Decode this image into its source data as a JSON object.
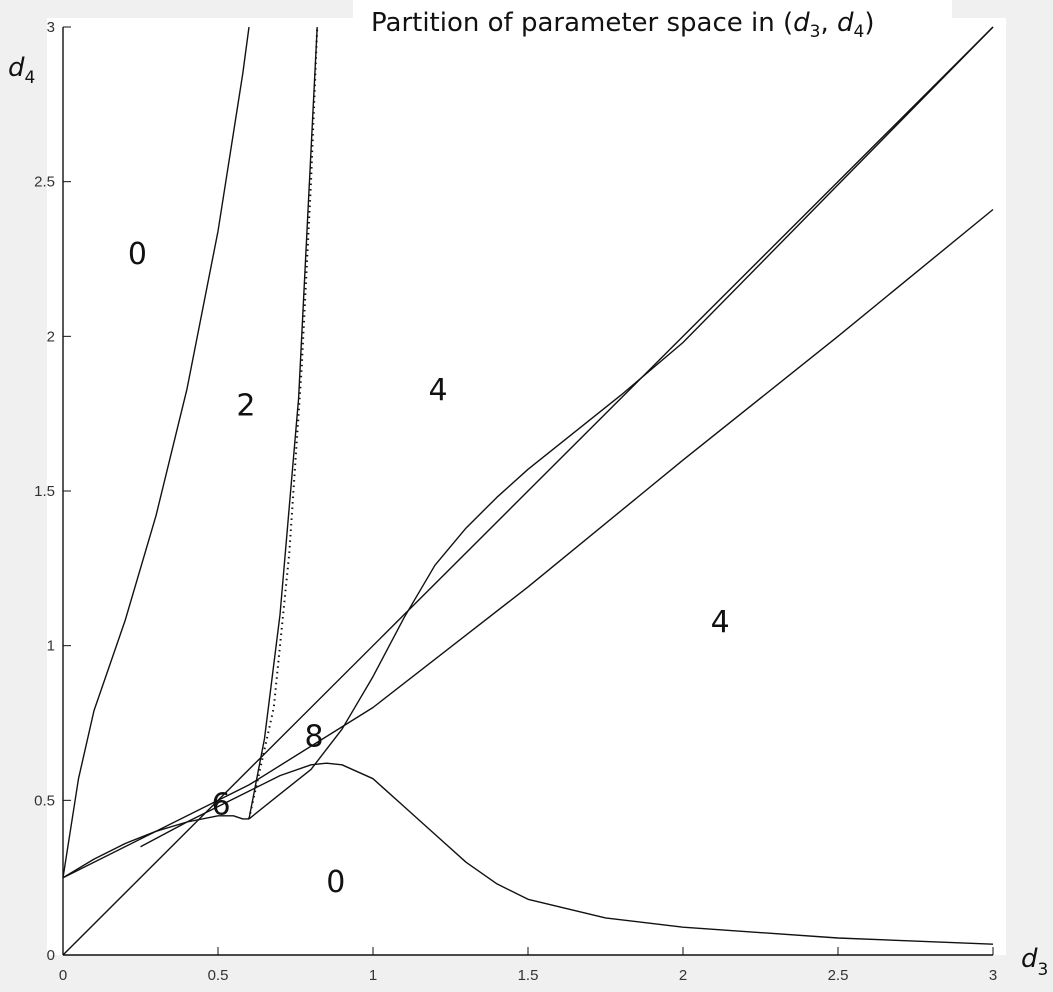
{
  "chart_data": {
    "type": "line",
    "title": "Partition of parameter space in (d3, d4)",
    "title_parts": {
      "prefix": "Partition of parameter space in (",
      "v1": "d",
      "s1": "3",
      "sep": ", ",
      "v2": "d",
      "s2": "4",
      "suffix": ")"
    },
    "xlabel": {
      "var": "d",
      "sub": "3"
    },
    "ylabel": {
      "var": "d",
      "sub": "4"
    },
    "xlim": [
      0,
      3
    ],
    "ylim": [
      0,
      3
    ],
    "xticks": [
      "0",
      "0.5",
      "1",
      "1.5",
      "2",
      "2.5",
      "3"
    ],
    "yticks": [
      "0",
      "0.5",
      "1",
      "1.5",
      "2",
      "2.5",
      "3"
    ],
    "grid": false,
    "colors": {
      "curve": "#111111",
      "frame": "#111111",
      "background": "#ffffff",
      "gutter": "#f0f0f0"
    },
    "region_labels": [
      {
        "text": "0",
        "x": 0.24,
        "y": 2.27
      },
      {
        "text": "2",
        "x": 0.59,
        "y": 1.78
      },
      {
        "text": "4",
        "x": 1.21,
        "y": 1.83
      },
      {
        "text": "4",
        "x": 2.12,
        "y": 1.08
      },
      {
        "text": "8",
        "x": 0.81,
        "y": 0.71
      },
      {
        "text": "6",
        "x": 0.51,
        "y": 0.49
      },
      {
        "text": "0",
        "x": 0.88,
        "y": 0.24
      }
    ],
    "series": [
      {
        "style": "solid",
        "points": [
          [
            0,
            0
          ],
          [
            3,
            3
          ]
        ]
      },
      {
        "style": "solid",
        "points": [
          [
            0,
            0.25
          ],
          [
            0.6,
            0.55
          ],
          [
            1.0,
            0.8
          ],
          [
            1.5,
            1.19
          ],
          [
            2.0,
            1.6
          ],
          [
            2.5,
            2.0
          ],
          [
            3.0,
            2.41
          ]
        ]
      },
      {
        "style": "solid",
        "points": [
          [
            0,
            0.25
          ],
          [
            0.05,
            0.57
          ],
          [
            0.1,
            0.79
          ],
          [
            0.2,
            1.08
          ],
          [
            0.3,
            1.42
          ],
          [
            0.4,
            1.83
          ],
          [
            0.5,
            2.34
          ],
          [
            0.58,
            2.85
          ],
          [
            0.6,
            3.0
          ]
        ]
      },
      {
        "style": "solid",
        "points": [
          [
            0,
            0.25
          ],
          [
            0.1,
            0.31
          ],
          [
            0.2,
            0.36
          ],
          [
            0.3,
            0.4
          ],
          [
            0.4,
            0.43
          ],
          [
            0.5,
            0.45
          ],
          [
            0.55,
            0.45
          ],
          [
            0.58,
            0.44
          ],
          [
            0.6,
            0.44
          ]
        ]
      },
      {
        "style": "solid",
        "points": [
          [
            0.6,
            0.44
          ],
          [
            0.65,
            0.7
          ],
          [
            0.7,
            1.1
          ],
          [
            0.76,
            1.8
          ],
          [
            0.8,
            2.6
          ],
          [
            0.82,
            3.0
          ]
        ]
      },
      {
        "style": "solid",
        "points": [
          [
            0.6,
            0.44
          ],
          [
            0.7,
            0.52
          ],
          [
            0.8,
            0.6
          ],
          [
            0.9,
            0.73
          ],
          [
            1.0,
            0.9
          ],
          [
            1.1,
            1.09
          ],
          [
            1.2,
            1.26
          ],
          [
            1.3,
            1.38
          ],
          [
            1.4,
            1.48
          ],
          [
            1.5,
            1.57
          ],
          [
            1.6,
            1.65
          ],
          [
            1.8,
            1.81
          ],
          [
            2.0,
            1.98
          ],
          [
            2.5,
            2.49
          ],
          [
            3.0,
            3.0
          ]
        ]
      },
      {
        "style": "solid",
        "points": [
          [
            0.25,
            0.35
          ],
          [
            0.4,
            0.43
          ],
          [
            0.6,
            0.53
          ],
          [
            0.7,
            0.58
          ],
          [
            0.8,
            0.615
          ],
          [
            0.85,
            0.62
          ],
          [
            0.9,
            0.615
          ],
          [
            1.0,
            0.57
          ],
          [
            1.1,
            0.48
          ],
          [
            1.2,
            0.39
          ],
          [
            1.3,
            0.3
          ],
          [
            1.4,
            0.23
          ],
          [
            1.5,
            0.18
          ],
          [
            1.75,
            0.12
          ],
          [
            2.0,
            0.09
          ],
          [
            2.5,
            0.055
          ],
          [
            3.0,
            0.035
          ]
        ]
      },
      {
        "style": "dotted",
        "points": [
          [
            0.6,
            0.44
          ],
          [
            0.68,
            0.8
          ],
          [
            0.73,
            1.3
          ],
          [
            0.77,
            1.9
          ],
          [
            0.8,
            2.5
          ],
          [
            0.82,
            3.0
          ]
        ]
      }
    ]
  }
}
